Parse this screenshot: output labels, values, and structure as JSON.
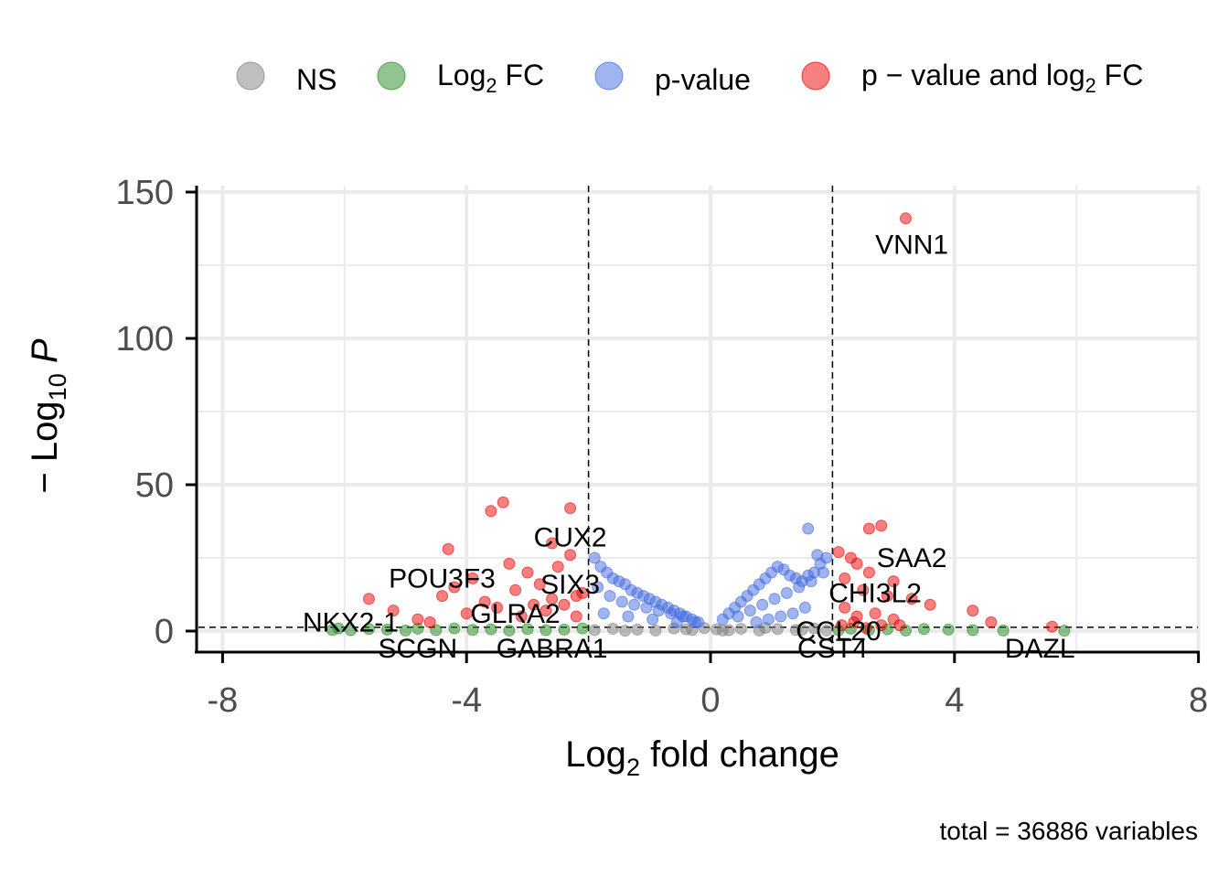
{
  "chart_data": {
    "type": "scatter",
    "title": "",
    "xlabel": "Log2 fold change",
    "ylabel": "− Log10 P",
    "xlim": [
      -8.5,
      8
    ],
    "ylim": [
      -7,
      150
    ],
    "x_ticks": [
      "-8",
      "-4",
      "0",
      "4",
      "8"
    ],
    "y_ticks": [
      "0",
      "50",
      "100",
      "150"
    ],
    "fc_cutoff": 2,
    "p_cutoff_log10": 1.3,
    "caption": "total = 36886 variables",
    "legend_position": "top",
    "legend": [
      {
        "key": "ns",
        "label": "NS",
        "color": "#7f7f7f"
      },
      {
        "key": "fc",
        "label": "Log2 FC",
        "color": "#228b22"
      },
      {
        "key": "p",
        "label": "p-value",
        "color": "#4169e1"
      },
      {
        "key": "both",
        "label": "p − value and log2 FC",
        "color": "#ee0000"
      }
    ],
    "series": [
      {
        "key": "ns",
        "color": "#7f7f7f",
        "x": [
          -1.9,
          -1.6,
          -1.2,
          -0.9,
          -0.6,
          -0.3,
          -0.1,
          0.1,
          0.3,
          0.5,
          0.8,
          1.1,
          1.4,
          1.7,
          1.9,
          -1.4,
          -0.4,
          0.2,
          0.9,
          1.5
        ],
        "y": [
          0.3,
          0.8,
          0.5,
          0.2,
          0.9,
          0.4,
          1.0,
          0.6,
          0.3,
          0.8,
          0.2,
          0.7,
          0.4,
          0.9,
          0.2,
          0.1,
          0.6,
          0.2,
          1.1,
          0.5
        ]
      },
      {
        "key": "fc",
        "color": "#228b22",
        "x": [
          -6.2,
          -6.1,
          -5.9,
          -5.6,
          -5.3,
          -5.0,
          -4.8,
          -4.5,
          -4.2,
          -3.9,
          -3.6,
          -3.3,
          -3.0,
          -2.7,
          -2.4,
          -2.1,
          2.1,
          2.3,
          2.6,
          2.9,
          3.2,
          3.5,
          3.9,
          4.3,
          4.8,
          5.8
        ],
        "y": [
          0.4,
          0.9,
          0.3,
          0.7,
          0.5,
          0.2,
          0.8,
          0.3,
          0.9,
          0.4,
          0.6,
          0.2,
          0.7,
          0.3,
          0.5,
          0.9,
          0.3,
          0.8,
          0.4,
          0.6,
          0.2,
          0.7,
          0.5,
          0.3,
          0.2,
          0.1
        ]
      },
      {
        "key": "p",
        "color": "#4169e1",
        "x": [
          -1.9,
          -1.8,
          -1.7,
          -1.6,
          -1.5,
          -1.4,
          -1.3,
          -1.2,
          -1.1,
          -1.0,
          -0.9,
          -0.8,
          -0.7,
          -0.6,
          -0.5,
          -0.4,
          -0.3,
          -0.2,
          -1.85,
          -1.65,
          -1.45,
          -1.25,
          -1.05,
          -0.85,
          -0.65,
          -0.45,
          -0.25,
          -1.75,
          -1.35,
          -0.95,
          -0.55,
          0.2,
          0.3,
          0.4,
          0.5,
          0.6,
          0.7,
          0.8,
          0.9,
          1.0,
          1.1,
          1.2,
          1.3,
          1.4,
          1.5,
          1.6,
          1.7,
          1.8,
          1.9,
          0.45,
          0.65,
          0.85,
          1.05,
          1.25,
          1.45,
          1.65,
          1.85,
          0.75,
          0.95,
          1.15,
          1.35,
          1.55,
          1.6,
          1.75
        ],
        "y": [
          25,
          22,
          20,
          18,
          17,
          16,
          14,
          13,
          12,
          11,
          10,
          9,
          8,
          7,
          6,
          5,
          4,
          3,
          15,
          12,
          10,
          9,
          8,
          7,
          6,
          5,
          3,
          6,
          5,
          4,
          3,
          4,
          6,
          8,
          10,
          12,
          14,
          16,
          18,
          20,
          22,
          21,
          19,
          18,
          17,
          19,
          20,
          23,
          25,
          5,
          7,
          9,
          11,
          13,
          15,
          17,
          20,
          3,
          4,
          5,
          6,
          8,
          35,
          26
        ]
      },
      {
        "key": "both",
        "color": "#ee0000",
        "x": [
          -3.6,
          -3.4,
          -2.3,
          -4.3,
          -3.3,
          -2.6,
          -2.3,
          -4.2,
          -3.9,
          -3.0,
          -2.8,
          -2.5,
          -2.2,
          -4.4,
          -3.7,
          -3.2,
          -2.9,
          -2.6,
          -2.1,
          -5.6,
          -5.2,
          -4.8,
          -4.6,
          -4.0,
          -3.5,
          -3.1,
          -2.7,
          -2.4,
          -2.2,
          3.2,
          2.8,
          2.6,
          2.3,
          2.1,
          2.4,
          2.6,
          3.0,
          3.3,
          2.2,
          2.5,
          2.9,
          3.6,
          4.3,
          4.6,
          5.6,
          2.2,
          2.4,
          2.7,
          3.0,
          2.15,
          2.35,
          2.55,
          2.8,
          3.1
        ],
        "y": [
          41,
          44,
          42,
          28,
          23,
          30,
          26,
          15,
          18,
          20,
          16,
          22,
          12,
          12,
          10,
          14,
          9,
          11,
          13,
          11,
          7,
          4,
          3,
          6,
          8,
          5,
          7,
          9,
          5,
          141,
          36,
          35,
          25,
          27,
          23,
          20,
          17,
          11,
          18,
          14,
          12,
          9,
          7,
          3,
          1.5,
          8,
          5,
          6,
          4,
          2,
          3,
          1,
          2,
          2
        ]
      }
    ],
    "labels": [
      {
        "text": "VNN1",
        "x": 3.3,
        "y": 132
      },
      {
        "text": "CUX2",
        "x": -2.3,
        "y": 32
      },
      {
        "text": "SAA2",
        "x": 3.3,
        "y": 25
      },
      {
        "text": "POU3F3",
        "x": -4.4,
        "y": 18
      },
      {
        "text": "SIX3",
        "x": -2.3,
        "y": 16
      },
      {
        "text": "CHI3L2",
        "x": 2.7,
        "y": 13
      },
      {
        "text": "NKX2-1",
        "x": -5.9,
        "y": 3
      },
      {
        "text": "GLRA2",
        "x": -3.2,
        "y": 6
      },
      {
        "text": "CCL20",
        "x": 2.1,
        "y": 0
      },
      {
        "text": "SCGN",
        "x": -4.8,
        "y": -6
      },
      {
        "text": "GABRA1",
        "x": -2.6,
        "y": -6
      },
      {
        "text": "CST4",
        "x": 2.0,
        "y": -6
      },
      {
        "text": "DAZL",
        "x": 5.4,
        "y": -6
      }
    ]
  }
}
